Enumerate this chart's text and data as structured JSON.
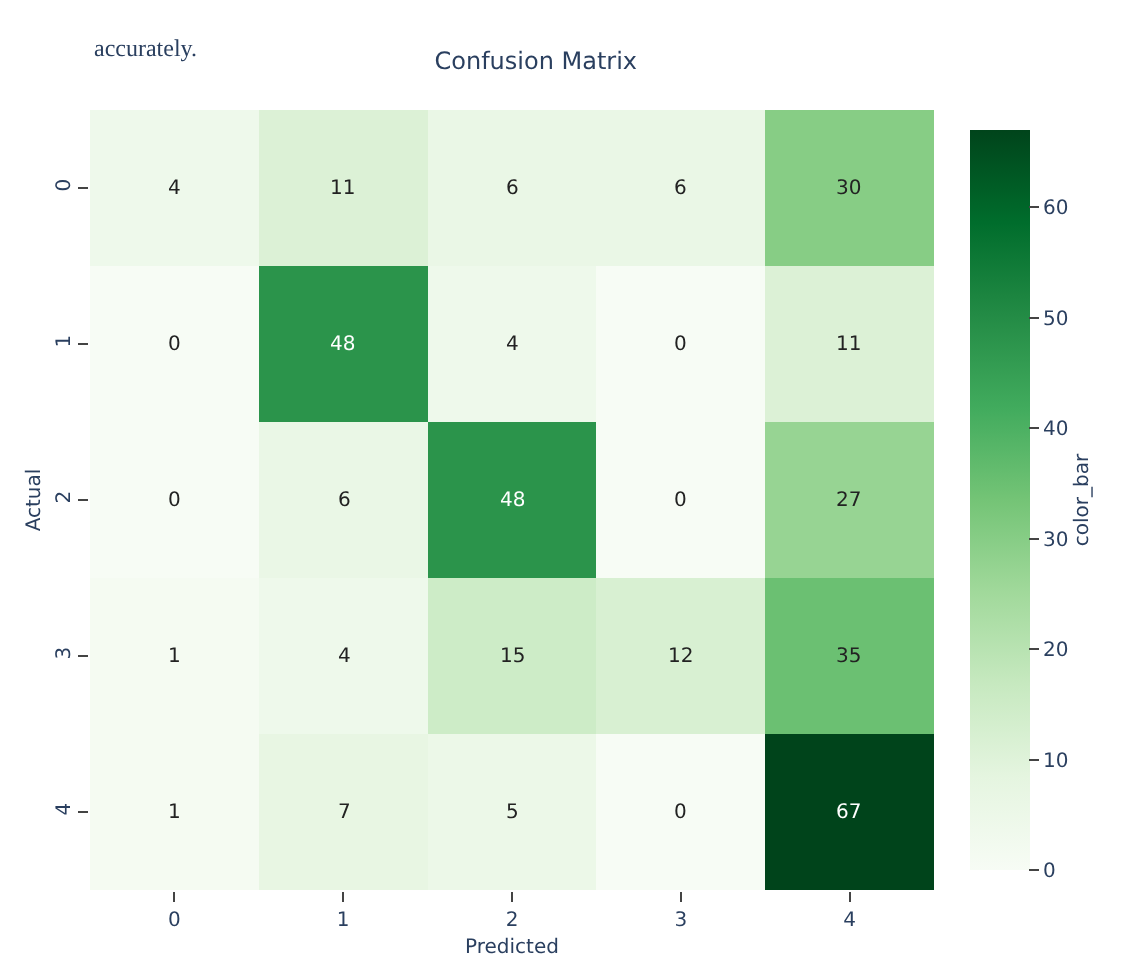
{
  "chart_data": {
    "type": "heatmap",
    "title": "Confusion Matrix",
    "xlabel": "Predicted",
    "ylabel": "Actual",
    "clabel": "color_bar",
    "categories": [
      "0",
      "1",
      "2",
      "3",
      "4"
    ],
    "y_categories": [
      "0",
      "1",
      "2",
      "3",
      "4"
    ],
    "cells": [
      [
        4,
        11,
        6,
        6,
        30
      ],
      [
        0,
        48,
        4,
        0,
        11
      ],
      [
        0,
        6,
        48,
        0,
        27
      ],
      [
        1,
        4,
        15,
        12,
        35
      ],
      [
        1,
        7,
        5,
        0,
        67
      ]
    ],
    "data_labels": true,
    "clim": [
      0,
      67
    ],
    "cticks": [
      0,
      10,
      20,
      30,
      40,
      50,
      60
    ],
    "annotations": [
      "accurately."
    ]
  }
}
